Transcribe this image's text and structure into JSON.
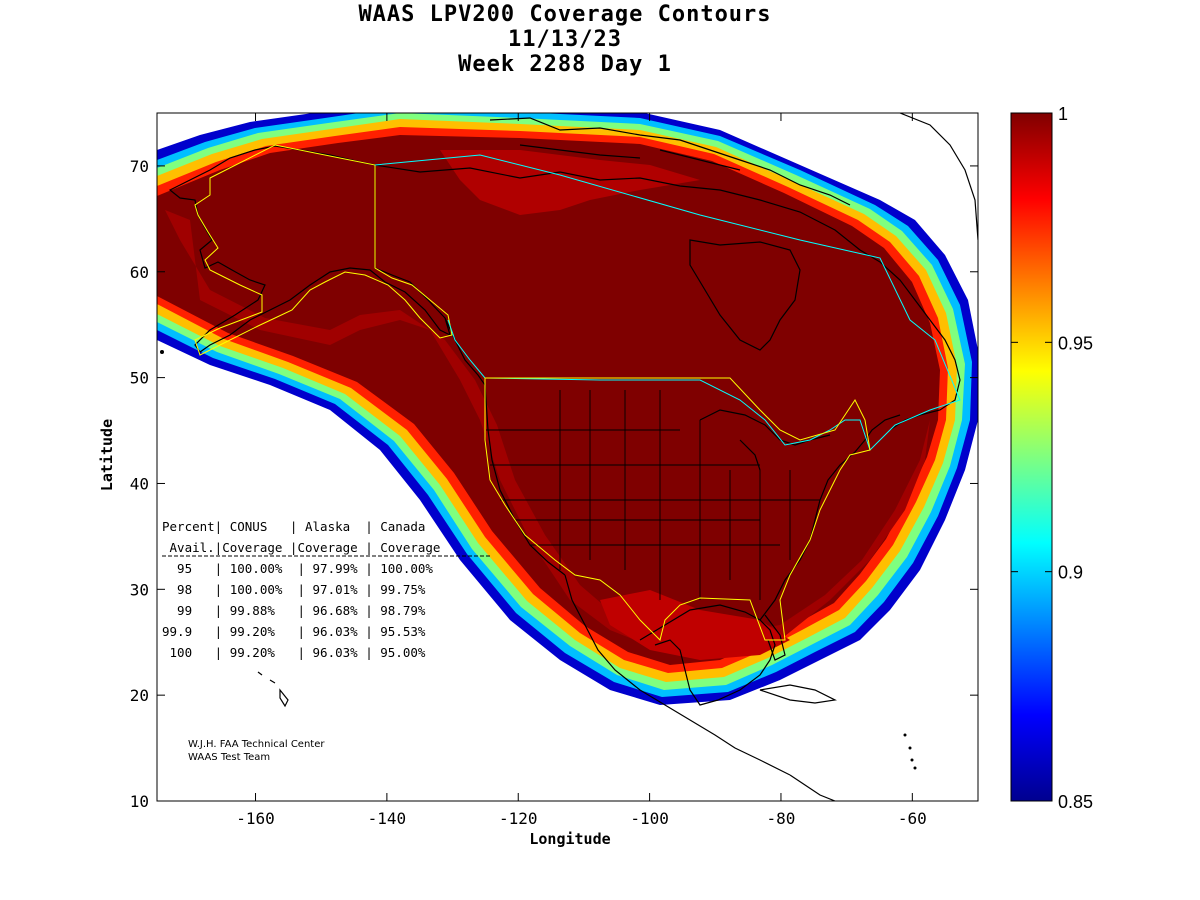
{
  "title": {
    "line1": "WAAS LPV200 Coverage Contours",
    "line2": "11/13/23",
    "line3": "Week 2288 Day 1"
  },
  "axes": {
    "xlabel": "Longitude",
    "ylabel": "Latitude",
    "xlim": [
      -175,
      -50
    ],
    "ylim": [
      10,
      75
    ],
    "xticks": [
      -160,
      -140,
      -120,
      -100,
      -80,
      -60
    ],
    "yticks": [
      10,
      20,
      30,
      40,
      50,
      60,
      70
    ]
  },
  "colorbar": {
    "min": 0.85,
    "max": 1,
    "ticks": [
      "1",
      "0.95",
      "0.9",
      "0.85"
    ],
    "tick_values": [
      1,
      0.95,
      0.9,
      0.85
    ],
    "colormap": "jet"
  },
  "stats_table": {
    "lines": [
      "Percent| CONUS   | Alaska  | Canada",
      " Avail.|Coverage |Coverage | Coverage",
      "  95   | 100.00%  | 97.99% | 100.00%",
      "  98   | 100.00%  | 97.01% | 99.75%",
      "  99   | 99.88%   | 96.68% | 98.79%",
      "99.9   | 99.20%   | 96.03% | 95.53%",
      " 100   | 99.20%   | 96.03% | 95.00%"
    ],
    "rows": [
      {
        "percent": "95",
        "conus": "100.00%",
        "alaska": "97.99%",
        "canada": "100.00%"
      },
      {
        "percent": "98",
        "conus": "100.00%",
        "alaska": "97.01%",
        "canada": "99.75%"
      },
      {
        "percent": "99",
        "conus": "99.88%",
        "alaska": "96.68%",
        "canada": "98.79%"
      },
      {
        "percent": "99.9",
        "conus": "99.20%",
        "alaska": "96.03%",
        "canada": "95.53%"
      },
      {
        "percent": "100",
        "conus": "99.20%",
        "alaska": "96.03%",
        "canada": "95.00%"
      }
    ]
  },
  "credits": {
    "line1": "W.J.H. FAA Technical Center",
    "line2": "WAAS Test Team"
  },
  "colors": {
    "core": "#7f0000",
    "service_yellow": "#ffff00",
    "canada_cyan": "#00ffff"
  }
}
